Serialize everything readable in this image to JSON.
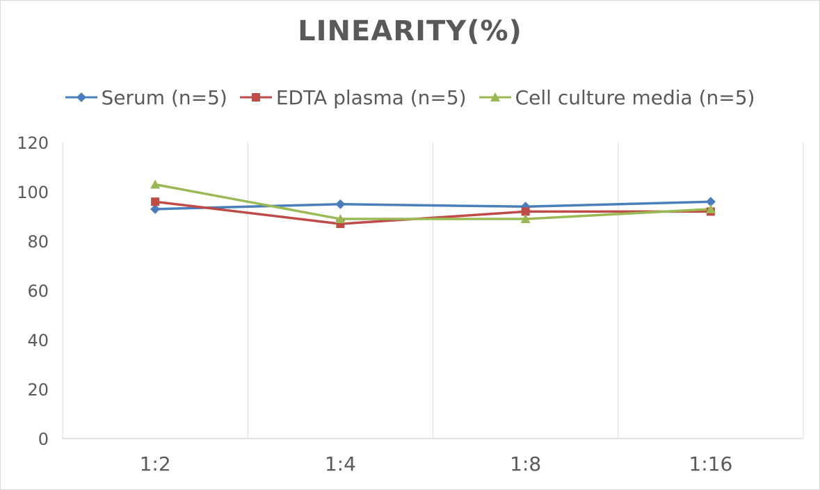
{
  "chart_data": {
    "type": "line",
    "title": "LINEARITY(%)",
    "xlabel": "",
    "ylabel": "",
    "categories": [
      "1:2",
      "1:4",
      "1:8",
      "1:16"
    ],
    "ylim": [
      0,
      120
    ],
    "yticks": [
      0,
      20,
      40,
      60,
      80,
      100,
      120
    ],
    "grid": "vertical",
    "legend_position": "top",
    "series": [
      {
        "name": "Serum (n=5)",
        "values": [
          93,
          95,
          94,
          96
        ],
        "color": "#4a7ebb",
        "marker": "diamond"
      },
      {
        "name": "EDTA plasma (n=5)",
        "values": [
          96,
          87,
          92,
          92
        ],
        "color": "#be4b48",
        "marker": "square"
      },
      {
        "name": "Cell culture media (n=5)",
        "values": [
          103,
          89,
          89,
          93
        ],
        "color": "#98b954",
        "marker": "triangle"
      }
    ]
  }
}
